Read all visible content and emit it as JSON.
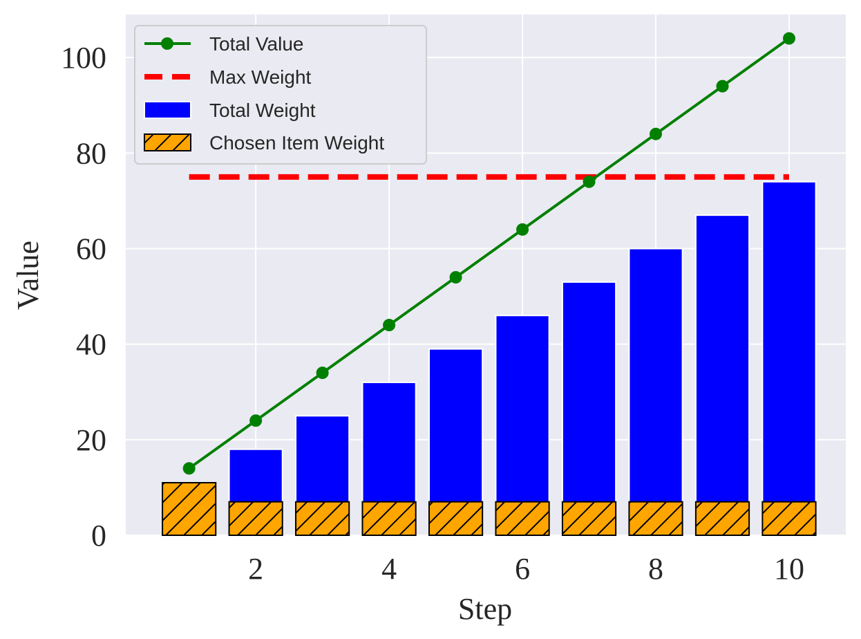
{
  "chart_data": {
    "type": "bar",
    "xlabel": "Step",
    "ylabel": "Value",
    "x": [
      1,
      2,
      3,
      4,
      5,
      6,
      7,
      8,
      9,
      10
    ],
    "xlim": [
      0.05,
      10.85
    ],
    "ylim": [
      0,
      109
    ],
    "xticks": [
      2,
      4,
      6,
      8,
      10
    ],
    "yticks": [
      0,
      20,
      40,
      60,
      80,
      100
    ],
    "grid": true,
    "legend_position": "upper-left",
    "series": [
      {
        "name": "Total Value",
        "kind": "line",
        "color": "#008000",
        "values": [
          14,
          24,
          34,
          44,
          54,
          64,
          74,
          84,
          94,
          104
        ]
      },
      {
        "name": "Max Weight",
        "kind": "dashed-line",
        "color": "#ff0000",
        "values": [
          75,
          75,
          75,
          75,
          75,
          75,
          75,
          75,
          75,
          75
        ]
      },
      {
        "name": "Total Weight",
        "kind": "bar",
        "color": "#0000ff",
        "values": [
          11,
          18,
          25,
          32,
          39,
          46,
          53,
          60,
          67,
          74
        ]
      },
      {
        "name": "Chosen Item Weight",
        "kind": "hatched-bar",
        "color": "#ffa500",
        "values": [
          11,
          7,
          7,
          7,
          7,
          7,
          7,
          7,
          7,
          7
        ]
      }
    ],
    "background_color": "#eaeaf2"
  }
}
